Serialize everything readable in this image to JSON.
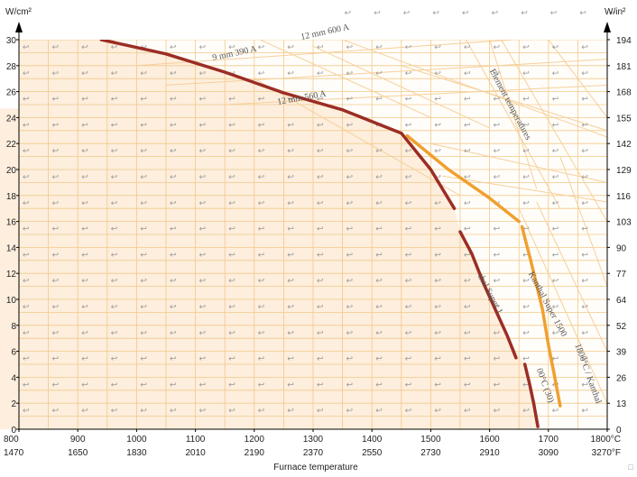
{
  "chart_data": {
    "type": "line",
    "xlabel": "Furnace temperature",
    "x_unit_c": "°C",
    "x_unit_f": "°F",
    "y_left_unit": "W/cm²",
    "y_right_unit": "W/in²",
    "xlim": [
      800,
      1800
    ],
    "ylim": [
      0,
      30
    ],
    "x_ticks_c": [
      "800",
      "900",
      "1000",
      "1100",
      "1200",
      "1300",
      "1400",
      "1500",
      "1600",
      "1700",
      "1800°C"
    ],
    "x_ticks_f": [
      "1470",
      "1650",
      "1830",
      "2010",
      "2190",
      "2370",
      "2550",
      "2730",
      "2910",
      "3090",
      "3270°F"
    ],
    "y_left_ticks": [
      "0",
      "2",
      "4",
      "6",
      "8",
      "10",
      "12",
      "14",
      "16",
      "18",
      "20",
      "22",
      "24",
      "26",
      "28",
      "30"
    ],
    "y_right_ticks": [
      "0",
      "13",
      "26",
      "39",
      "52",
      "64",
      "77",
      "90",
      "103",
      "116",
      "129",
      "142",
      "155",
      "168",
      "181",
      "194"
    ],
    "grid": true,
    "series": [
      {
        "color": "#9b2d24",
        "points": [
          [
            940,
            30.0
          ],
          [
            1050,
            28.9
          ],
          [
            1150,
            27.5
          ],
          [
            1250,
            25.9
          ],
          [
            1350,
            24.6
          ],
          [
            1450,
            22.8
          ],
          [
            1500,
            20.0
          ],
          [
            1540,
            17.0
          ]
        ]
      },
      {
        "color": "#9b2d24",
        "points": [
          [
            1550,
            15.2
          ],
          [
            1570,
            13.5
          ],
          [
            1590,
            11.2
          ],
          [
            1610,
            9.2
          ],
          [
            1630,
            7.2
          ],
          [
            1645,
            5.5
          ]
        ]
      },
      {
        "color": "#9b2d24",
        "points": [
          [
            1660,
            5.0
          ],
          [
            1668,
            3.5
          ],
          [
            1675,
            2.0
          ],
          [
            1682,
            0.2
          ]
        ]
      },
      {
        "color": "#f0a030",
        "points": [
          [
            1460,
            22.6
          ],
          [
            1530,
            20.0
          ],
          [
            1600,
            17.8
          ],
          [
            1650,
            16.0
          ]
        ]
      },
      {
        "color": "#f0a030",
        "points": [
          [
            1655,
            15.6
          ],
          [
            1670,
            13.0
          ],
          [
            1690,
            9.2
          ],
          [
            1700,
            6.5
          ],
          [
            1710,
            4.2
          ],
          [
            1720,
            1.8
          ]
        ]
      }
    ],
    "annotations": [
      {
        "text": "9 mm  390 A",
        "x": 1130,
        "y": 28.4,
        "angle": -12
      },
      {
        "text": "12 mm  600 A",
        "x": 1280,
        "y": 30.0,
        "angle": -12
      },
      {
        "text": "12 mm  560 A",
        "x": 1240,
        "y": 25.0,
        "angle": -10
      },
      {
        "text": "Element temperatures",
        "x": 1600,
        "y": 27.6,
        "angle": 62
      },
      {
        "text": "Kanthal Super 1500",
        "x": 1666,
        "y": 12.0,
        "angle": 62
      },
      {
        "text": "1800°C / Kanthal",
        "x": 1745,
        "y": 6.5,
        "angle": 70
      },
      {
        "text": "thal Super 1",
        "x": 1580,
        "y": 11.8,
        "angle": 62
      },
      {
        "text": "00°C (30)",
        "x": 1680,
        "y": 4.6,
        "angle": 70
      }
    ]
  },
  "ui": {
    "corner_glyph": "□",
    "mark_glyph": "↩",
    "mark_small": "↲"
  }
}
